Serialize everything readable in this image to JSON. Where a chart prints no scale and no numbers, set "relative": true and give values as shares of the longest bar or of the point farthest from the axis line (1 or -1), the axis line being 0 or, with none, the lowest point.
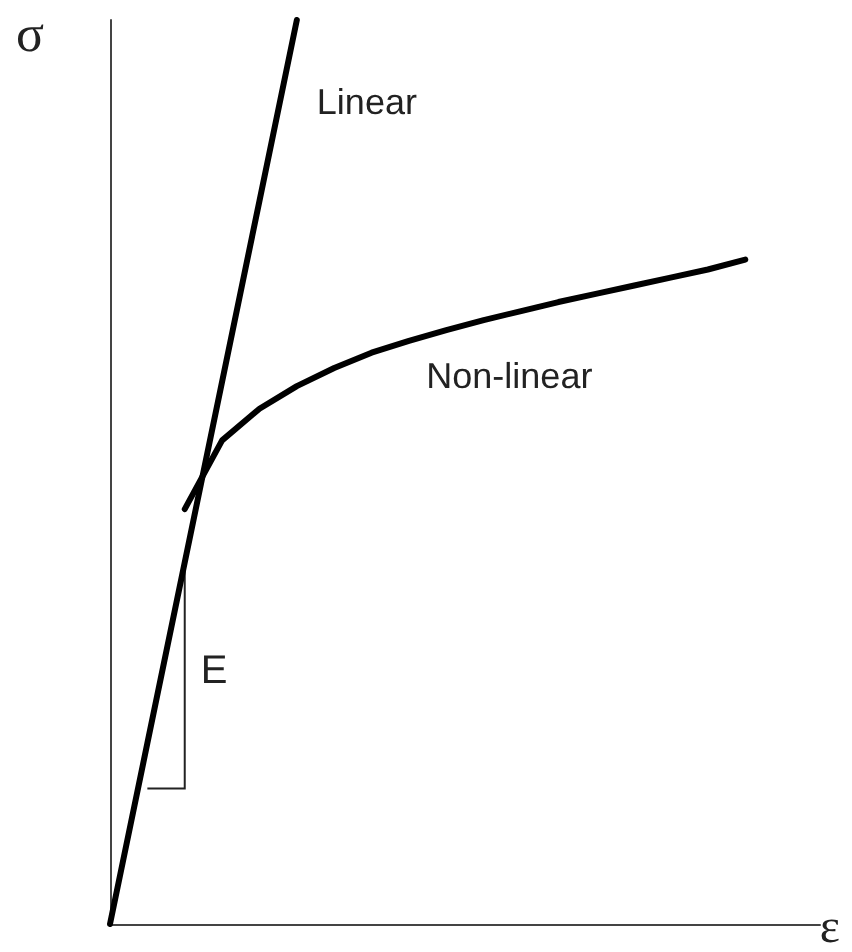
{
  "chart_data": {
    "type": "line",
    "relative": true,
    "xlabel": "ε",
    "ylabel": "σ",
    "grid": false,
    "legend": false,
    "marker": "none",
    "line_style": "solid",
    "annotations": [
      "E"
    ],
    "categories": [
      null,
      null,
      null,
      null,
      null,
      null,
      null,
      null,
      null,
      null,
      null,
      null,
      null,
      null,
      null,
      null,
      null,
      null,
      null,
      null
    ],
    "series": [
      {
        "name": "Linear",
        "color": "#000000",
        "values": [
          0,
          0.2,
          0.4,
          0.6,
          0.8,
          1,
          null,
          null,
          null,
          null,
          null,
          null,
          null,
          null,
          null,
          null,
          null,
          null,
          null,
          null
        ]
      },
      {
        "name": "Non-linear",
        "color": "#000000",
        "values": [
          null,
          null,
          0.459,
          0.535,
          0.57,
          0.595,
          0.615,
          0.632,
          0.645,
          0.657,
          0.668,
          0.678,
          0.688,
          0.697,
          0.706,
          0.715,
          0.724,
          0.735,
          null,
          null
        ]
      }
    ]
  }
}
